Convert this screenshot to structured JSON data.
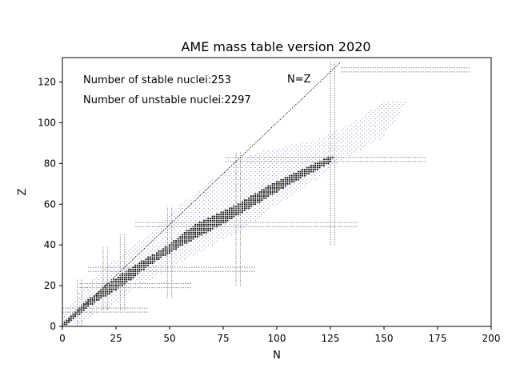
{
  "chart_data": {
    "type": "scatter",
    "title": "AME mass table version 2020",
    "xlabel": "N",
    "ylabel": "Z",
    "xlim": [
      0,
      200
    ],
    "ylim": [
      0,
      132
    ],
    "xticks": [
      0,
      25,
      50,
      75,
      100,
      125,
      150,
      175,
      200
    ],
    "yticks": [
      0,
      20,
      40,
      60,
      80,
      100,
      120
    ],
    "grid": false,
    "annotations": {
      "stable": "Number of stable nuclei:253",
      "unstable": "Number of unstable nuclei:2297",
      "nz_label": "N=Z"
    },
    "reference_line": {
      "label": "N=Z",
      "from": [
        0,
        0
      ],
      "to": [
        130,
        130
      ]
    },
    "magic_numbers": [
      2,
      8,
      20,
      28,
      50,
      82,
      126
    ],
    "magic_lines": {
      "vertical": [
        {
          "n": 8,
          "z_range": [
            0,
            23
          ]
        },
        {
          "n": 20,
          "z_range": [
            8,
            39
          ]
        },
        {
          "n": 28,
          "z_range": [
            8,
            45
          ]
        },
        {
          "n": 50,
          "z_range": [
            14,
            59
          ]
        },
        {
          "n": 82,
          "z_range": [
            20,
            86
          ]
        },
        {
          "n": 126,
          "z_range": [
            40,
            130
          ]
        }
      ],
      "horizontal": [
        {
          "z": 8,
          "n_range": [
            0,
            40
          ]
        },
        {
          "z": 20,
          "n_range": [
            8,
            60
          ]
        },
        {
          "z": 28,
          "n_range": [
            12,
            90
          ]
        },
        {
          "z": 50,
          "n_range": [
            34,
            138
          ]
        },
        {
          "z": 82,
          "n_range": [
            76,
            170
          ]
        },
        {
          "z": 126,
          "n_range": [
            130,
            190
          ]
        }
      ]
    },
    "series": [
      {
        "name": "unstable",
        "color": "#6666cc",
        "band": [
          {
            "z": 2,
            "n_min": 0,
            "n_max": 8
          },
          {
            "z": 10,
            "n_min": 3,
            "n_max": 23
          },
          {
            "z": 20,
            "n_min": 12,
            "n_max": 36
          },
          {
            "z": 30,
            "n_min": 22,
            "n_max": 52
          },
          {
            "z": 40,
            "n_min": 34,
            "n_max": 70
          },
          {
            "z": 50,
            "n_min": 46,
            "n_max": 87
          },
          {
            "z": 60,
            "n_min": 56,
            "n_max": 100
          },
          {
            "z": 70,
            "n_min": 68,
            "n_max": 115
          },
          {
            "z": 80,
            "n_min": 80,
            "n_max": 128
          },
          {
            "z": 85,
            "n_min": 90,
            "n_max": 135
          },
          {
            "z": 92,
            "n_min": 120,
            "n_max": 148
          },
          {
            "z": 100,
            "n_min": 136,
            "n_max": 154
          },
          {
            "z": 110,
            "n_min": 150,
            "n_max": 160
          }
        ]
      },
      {
        "name": "stable",
        "color": "#000000",
        "band": [
          {
            "z": 1,
            "n_min": 0,
            "n_max": 2
          },
          {
            "z": 10,
            "n_min": 9,
            "n_max": 12
          },
          {
            "z": 20,
            "n_min": 20,
            "n_max": 28
          },
          {
            "z": 30,
            "n_min": 34,
            "n_max": 40
          },
          {
            "z": 40,
            "n_min": 50,
            "n_max": 56
          },
          {
            "z": 50,
            "n_min": 62,
            "n_max": 74
          },
          {
            "z": 60,
            "n_min": 82,
            "n_max": 90
          },
          {
            "z": 70,
            "n_min": 98,
            "n_max": 106
          },
          {
            "z": 80,
            "n_min": 118,
            "n_max": 124
          },
          {
            "z": 83,
            "n_min": 124,
            "n_max": 126
          }
        ]
      }
    ]
  }
}
